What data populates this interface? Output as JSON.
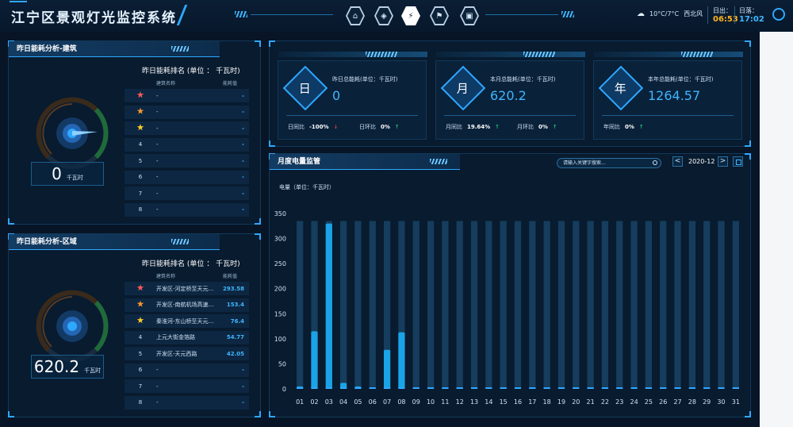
{
  "header": {
    "title": "江宁区景观灯光监控系统",
    "nav_icons": [
      {
        "name": "home-icon",
        "glyph": "⌂",
        "active": false
      },
      {
        "name": "car-icon",
        "glyph": "◈",
        "active": false
      },
      {
        "name": "lightning-icon",
        "glyph": "⚡",
        "active": true
      },
      {
        "name": "flag-icon",
        "glyph": "⚑",
        "active": false
      },
      {
        "name": "vehicle-icon",
        "glyph": "▣",
        "active": false
      }
    ],
    "weather": {
      "temp": "10°C/7°C",
      "wind": "西北风"
    },
    "sunrise_label": "日出：",
    "sunrise_time": "06:53",
    "sunset_label": "日落：",
    "sunset_time": "17:02"
  },
  "building_panel": {
    "title": "昨日能耗分析-建筑",
    "gauge": {
      "value": "0",
      "unit": "千瓦时",
      "level": 0.0
    },
    "ranking_title": "昨日能耗排名 (单位 ：  千瓦时)",
    "col_name": "建筑名称",
    "col_value": "能耗值",
    "rows": [
      {
        "rank": "1",
        "name": "-",
        "value": "-"
      },
      {
        "rank": "2",
        "name": "-",
        "value": "-"
      },
      {
        "rank": "3",
        "name": "-",
        "value": "-"
      },
      {
        "rank": "4",
        "name": "-",
        "value": "-"
      },
      {
        "rank": "5",
        "name": "-",
        "value": "-"
      },
      {
        "rank": "6",
        "name": "-",
        "value": "-"
      },
      {
        "rank": "7",
        "name": "-",
        "value": "-"
      },
      {
        "rank": "8",
        "name": "-",
        "value": "-"
      }
    ]
  },
  "region_panel": {
    "title": "昨日能耗分析-区域",
    "gauge": {
      "value": "620.2",
      "unit": "千瓦时",
      "level": 0.5
    },
    "ranking_title": "昨日能耗排名 (单位 ：  千瓦时)",
    "col_name": "建筑名称",
    "col_value": "能耗值",
    "rows": [
      {
        "rank": "1",
        "name": "开发区-河定桥至天元…",
        "value": "293.58"
      },
      {
        "rank": "2",
        "name": "开发区-南航机场高速…",
        "value": "153.4"
      },
      {
        "rank": "3",
        "name": "秦淮河-东山桥至天元…",
        "value": "76.4"
      },
      {
        "rank": "4",
        "name": "上元大街金箔路",
        "value": "54.77"
      },
      {
        "rank": "5",
        "name": "开发区-天元西路",
        "value": "42.05"
      },
      {
        "rank": "6",
        "name": "-",
        "value": "-"
      },
      {
        "rank": "7",
        "name": "-",
        "value": "-"
      },
      {
        "rank": "8",
        "name": "-",
        "value": "-"
      }
    ]
  },
  "kpis": [
    {
      "label": "昨日总能耗(单位：千瓦时)",
      "icon_char": "日",
      "value": "0",
      "metrics": [
        {
          "label": "日同比",
          "value": "-100%",
          "trend": "down"
        },
        {
          "label": "日环比",
          "value": "0%",
          "trend": "up"
        }
      ]
    },
    {
      "label": "本月总能耗(单位：千瓦时)",
      "icon_char": "月",
      "value": "620.2",
      "metrics": [
        {
          "label": "月同比",
          "value": "19.64%",
          "trend": "up"
        },
        {
          "label": "月环比",
          "value": "0%",
          "trend": "up"
        }
      ]
    },
    {
      "label": "本年总能耗(单位：千瓦时)",
      "icon_char": "年",
      "value": "1264.57",
      "metrics": [
        {
          "label": "年同比",
          "value": "0%",
          "trend": "up"
        }
      ]
    }
  ],
  "chart_panel": {
    "title": "月度电量监管",
    "search_placeholder": "请输入关键字搜索...",
    "prev_label": "<",
    "next_label": ">",
    "month": "2020-12",
    "unit_label": "电量（单位：千瓦时）"
  },
  "colors": {
    "accent": "#2fa8ff",
    "bar": "#1aa3e6",
    "bar_bg": "#1b4a6e",
    "warn": "#ffb21f"
  },
  "chart_data": {
    "type": "bar",
    "categories": [
      "01",
      "02",
      "03",
      "04",
      "05",
      "06",
      "07",
      "08",
      "09",
      "10",
      "11",
      "12",
      "13",
      "14",
      "15",
      "16",
      "17",
      "18",
      "19",
      "20",
      "21",
      "22",
      "23",
      "24",
      "25",
      "26",
      "27",
      "28",
      "29",
      "30",
      "31"
    ],
    "values": [
      5,
      115,
      330,
      12,
      5,
      0,
      78,
      113,
      0,
      0,
      0,
      0,
      0,
      0,
      0,
      0,
      0,
      0,
      0,
      0,
      0,
      0,
      0,
      0,
      0,
      0,
      0,
      0,
      0,
      0,
      0
    ],
    "ylabel": "电量（单位：千瓦时）",
    "ylim": [
      0,
      350
    ],
    "yticks": [
      0,
      50,
      100,
      150,
      200,
      250,
      300,
      350
    ],
    "background_value": 335,
    "grid": false
  }
}
